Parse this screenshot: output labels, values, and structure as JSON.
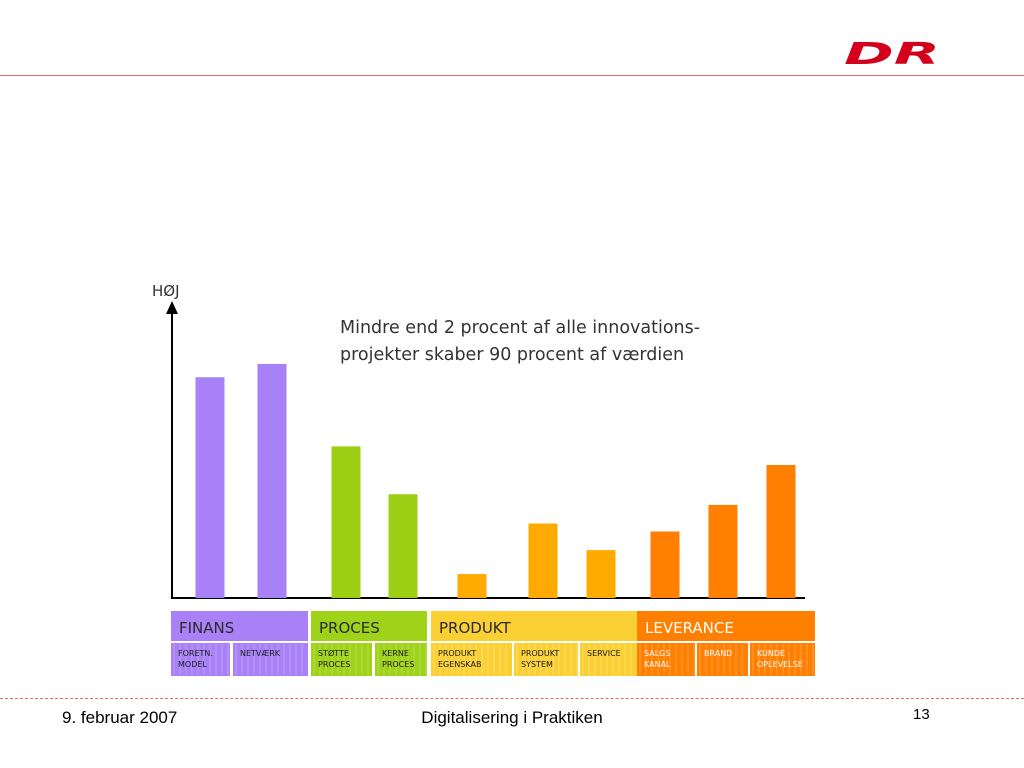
{
  "footer": {
    "date": "9. februar 2007",
    "title": "Digitalisering i Praktiken",
    "page": "13"
  },
  "logo": {
    "text": "DR",
    "color": "#d2001a"
  },
  "colors": {
    "finans": "#a881f7",
    "proces": "#9ccf14",
    "produkt": "#ffaa00",
    "leverance": "#ff7f00",
    "finans_header": "#a881f7",
    "proces_header": "#9fd31a",
    "produkt_header": "#fbd034",
    "leverance_header": "#ff7f00",
    "rule": "#e86a6a"
  },
  "chart_data": {
    "type": "bar",
    "ylabel": "HØJ",
    "ylim": [
      0,
      100
    ],
    "annotation": [
      "Mindre end 2 procent af alle innovations-",
      "projekter skaber 90 procent af værdien"
    ],
    "groups": [
      {
        "name": "FINANS",
        "color_key": "finans",
        "categories": [
          "FORETN. MODEL",
          "NETVÆRK"
        ],
        "values": [
          83,
          88
        ]
      },
      {
        "name": "PROCES",
        "color_key": "proces",
        "categories": [
          "STØTTE PROCES",
          "KERNE PROCES"
        ],
        "values": [
          57,
          39
        ]
      },
      {
        "name": "PRODUKT",
        "color_key": "produkt",
        "categories": [
          "PRODUKT EGENSKAB",
          "PRODUKT SYSTEM",
          "SERVICE"
        ],
        "values": [
          9,
          28,
          18
        ]
      },
      {
        "name": "LEVERANCE",
        "color_key": "leverance",
        "categories": [
          "SALGS KANAL",
          "BRAND",
          "KUNDE OPLEVELSE"
        ],
        "values": [
          25,
          35,
          50
        ]
      }
    ]
  }
}
